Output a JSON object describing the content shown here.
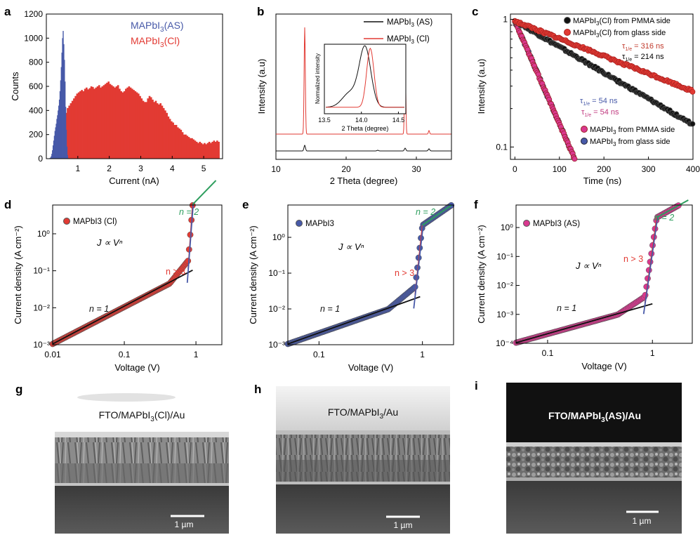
{
  "colors": {
    "red": "#e23a33",
    "blue": "#4759a8",
    "black": "#111111",
    "magenta": "#d9388f",
    "green": "#2e9e5e",
    "dark_red_text": "#c0392b",
    "pink_text": "#c0397f"
  },
  "panels": {
    "a": {
      "label": "a"
    },
    "b": {
      "label": "b"
    },
    "c": {
      "label": "c"
    },
    "d": {
      "label": "d"
    },
    "e": {
      "label": "e"
    },
    "f": {
      "label": "f"
    },
    "g": {
      "label": "g",
      "sem_caption": "FTO/MAPbI3(Cl)/Au",
      "scale_bar": "1 µm"
    },
    "h": {
      "label": "h",
      "sem_caption": "FTO/MAPbI3/Au",
      "scale_bar": "1 µm"
    },
    "i": {
      "label": "i",
      "sem_caption": "FTO/MAPbI3(AS)/Au",
      "scale_bar": "1 µm"
    }
  },
  "chart_data": [
    {
      "id": "a",
      "type": "histogram",
      "xlabel": "Current (nA)",
      "ylabel": "Counts",
      "xlim": [
        0,
        5.6
      ],
      "ylim": [
        0,
        1200
      ],
      "xticks": [
        "1",
        "2",
        "3",
        "4",
        "5"
      ],
      "yticks": [
        "0",
        "200",
        "400",
        "600",
        "800",
        "1000",
        "1200"
      ],
      "series": [
        {
          "name": "MAPbI3(AS)",
          "color": "blue",
          "bin_width": 0.02,
          "x_start": 0.1,
          "values": [
            5,
            10,
            20,
            40,
            70,
            110,
            150,
            190,
            230,
            260,
            290,
            330,
            360,
            400,
            440,
            490,
            560,
            650,
            760,
            880,
            1000,
            1060,
            950,
            820,
            640,
            430,
            240,
            100,
            30,
            5
          ]
        },
        {
          "name": "MAPbI3(Cl)",
          "color": "red",
          "bin_width": 0.05,
          "x_start": 0.3,
          "values": [
            100,
            150,
            180,
            220,
            270,
            330,
            380,
            420,
            440,
            460,
            480,
            500,
            520,
            540,
            550,
            560,
            570,
            560,
            580,
            590,
            575,
            585,
            600,
            595,
            580,
            590,
            600,
            610,
            590,
            600,
            610,
            620,
            630,
            640,
            620,
            610,
            600,
            590,
            600,
            610,
            580,
            560,
            550,
            560,
            580,
            590,
            600,
            590,
            580,
            570,
            560,
            550,
            540,
            520,
            500,
            480,
            470,
            470,
            500,
            520,
            510,
            490,
            470,
            480,
            460,
            450,
            460,
            440,
            420,
            400,
            380,
            350,
            330,
            310,
            300,
            280,
            280,
            260,
            250,
            240,
            220,
            200,
            200,
            190,
            180,
            170,
            170,
            160,
            150,
            140,
            130,
            140,
            130,
            120,
            130,
            120,
            130,
            140,
            130,
            140,
            150,
            140,
            150,
            140
          ]
        }
      ]
    },
    {
      "id": "b",
      "type": "line",
      "xlabel": "2 Theta (degree)",
      "ylabel": "Intensity (a.u)",
      "xlim": [
        10,
        35
      ],
      "xticks": [
        "10",
        "20",
        "30"
      ],
      "series": [
        {
          "name": "MAPbI3 (AS)",
          "color": "black",
          "peaks": [
            [
              14.1,
              8
            ],
            [
              28.4,
              4
            ],
            [
              31.8,
              3
            ],
            [
              24.5,
              1
            ]
          ]
        },
        {
          "name": "MAPbI3 (Cl)",
          "color": "red",
          "peaks": [
            [
              14.1,
              152
            ],
            [
              28.4,
              118
            ],
            [
              31.8,
              5
            ]
          ]
        }
      ],
      "inset": {
        "xlabel": "2 Theta (degree)",
        "ylabel": "Normalized intensity",
        "xlim": [
          13.5,
          14.6
        ],
        "xticks": [
          "13.5",
          "14.0",
          "14.5"
        ],
        "peaks": [
          {
            "series": "MAPbI3 (AS)",
            "color": "black",
            "center": 14.05,
            "width": 0.11,
            "shoulder": 0.25
          },
          {
            "series": "MAPbI3 (Cl)",
            "color": "red",
            "center": 14.12,
            "width": 0.07,
            "shoulder": 0.0
          }
        ]
      }
    },
    {
      "id": "c",
      "type": "scatter",
      "xlabel": "Time (ns)",
      "ylabel": "Intensity (a.u)",
      "xlim": [
        -10,
        400
      ],
      "ylim_log": [
        0.08,
        1.1
      ],
      "xticks": [
        "0",
        "100",
        "200",
        "300",
        "400"
      ],
      "yticks": [
        "0.1",
        "1"
      ],
      "series": [
        {
          "name": "MAPbI3(Cl) from PMMA side",
          "color": "black",
          "tau": 214,
          "legend": "top"
        },
        {
          "name": "MAPbI3(Cl) from glass side",
          "color": "red",
          "tau": 316,
          "legend": "top"
        },
        {
          "name": "MAPbI3 from PMMA side",
          "color": "magenta",
          "tau": 54,
          "legend": "bottom"
        },
        {
          "name": "MAPbI3 from glass side",
          "color": "blue",
          "tau": 54,
          "legend": "bottom"
        }
      ],
      "annotations": [
        {
          "text": "τ1/e = 316 ns",
          "color": "dark_red_text"
        },
        {
          "text": "τ1/e = 214 ns",
          "color": "black"
        },
        {
          "text": "τ1/e = 54 ns",
          "color": "blue"
        },
        {
          "text": "τ1/e = 54 ns",
          "color": "pink_text"
        }
      ]
    },
    {
      "id": "d",
      "type": "scatter",
      "xlabel": "Voltage (V)",
      "ylabel": "Current density (A cm⁻²)",
      "xlim_log": [
        0.01,
        2.3
      ],
      "ylim_log": [
        0.001,
        6
      ],
      "xticks": [
        "0.01",
        "0.1",
        "1"
      ],
      "yticks": [
        "10⁻³",
        "10⁻²",
        "10⁻¹",
        "10⁰"
      ],
      "legend": "MAPbI3 (Cl)",
      "marker_color": "red",
      "relation": "J ∝ Vⁿ",
      "regions": [
        {
          "label": "n = 1",
          "color": "black",
          "v_start": 0.01,
          "v_end": 0.9
        },
        {
          "label": "n > 3",
          "color": "red",
          "v_start": 0.78,
          "v_end": 0.9
        },
        {
          "label": "n = 2",
          "color": "green",
          "v_start": 0.9,
          "v_end": 1.9
        }
      ]
    },
    {
      "id": "e",
      "type": "scatter",
      "xlabel": "Voltage (V)",
      "ylabel": "Current density (A cm⁻²)",
      "xlim_log": [
        0.05,
        2.0
      ],
      "ylim_log": [
        0.001,
        8
      ],
      "xticks": [
        "0.1",
        "1"
      ],
      "yticks": [
        "10⁻³",
        "10⁻²",
        "10⁻¹",
        "10⁰"
      ],
      "legend": "MAPbI3",
      "marker_color": "blue",
      "relation": "J ∝ Vⁿ",
      "regions": [
        {
          "label": "n = 1",
          "color": "black",
          "v_start": 0.05,
          "v_end": 0.95
        },
        {
          "label": "n > 3",
          "color": "red",
          "v_start": 0.85,
          "v_end": 1.0
        },
        {
          "label": "n = 2",
          "color": "green",
          "v_start": 1.0,
          "v_end": 1.9
        }
      ]
    },
    {
      "id": "f",
      "type": "scatter",
      "xlabel": "Voltage (V)",
      "ylabel": "Current density (A cm⁻²)",
      "xlim_log": [
        0.05,
        2.4
      ],
      "ylim_log": [
        0.0001,
        6
      ],
      "xticks": [
        "0.1",
        "1"
      ],
      "yticks": [
        "10⁻⁴",
        "10⁻³",
        "10⁻²",
        "10⁻¹",
        "10⁰"
      ],
      "legend": "MAPbI3 (AS)",
      "marker_color": "magenta",
      "relation": "J ∝ Vⁿ",
      "regions": [
        {
          "label": "n = 1",
          "color": "black",
          "v_start": 0.05,
          "v_end": 1.0
        },
        {
          "label": "n > 3",
          "color": "red",
          "v_start": 0.85,
          "v_end": 1.1
        },
        {
          "label": "n = 2",
          "color": "green",
          "v_start": 1.1,
          "v_end": 2.2
        }
      ]
    }
  ]
}
